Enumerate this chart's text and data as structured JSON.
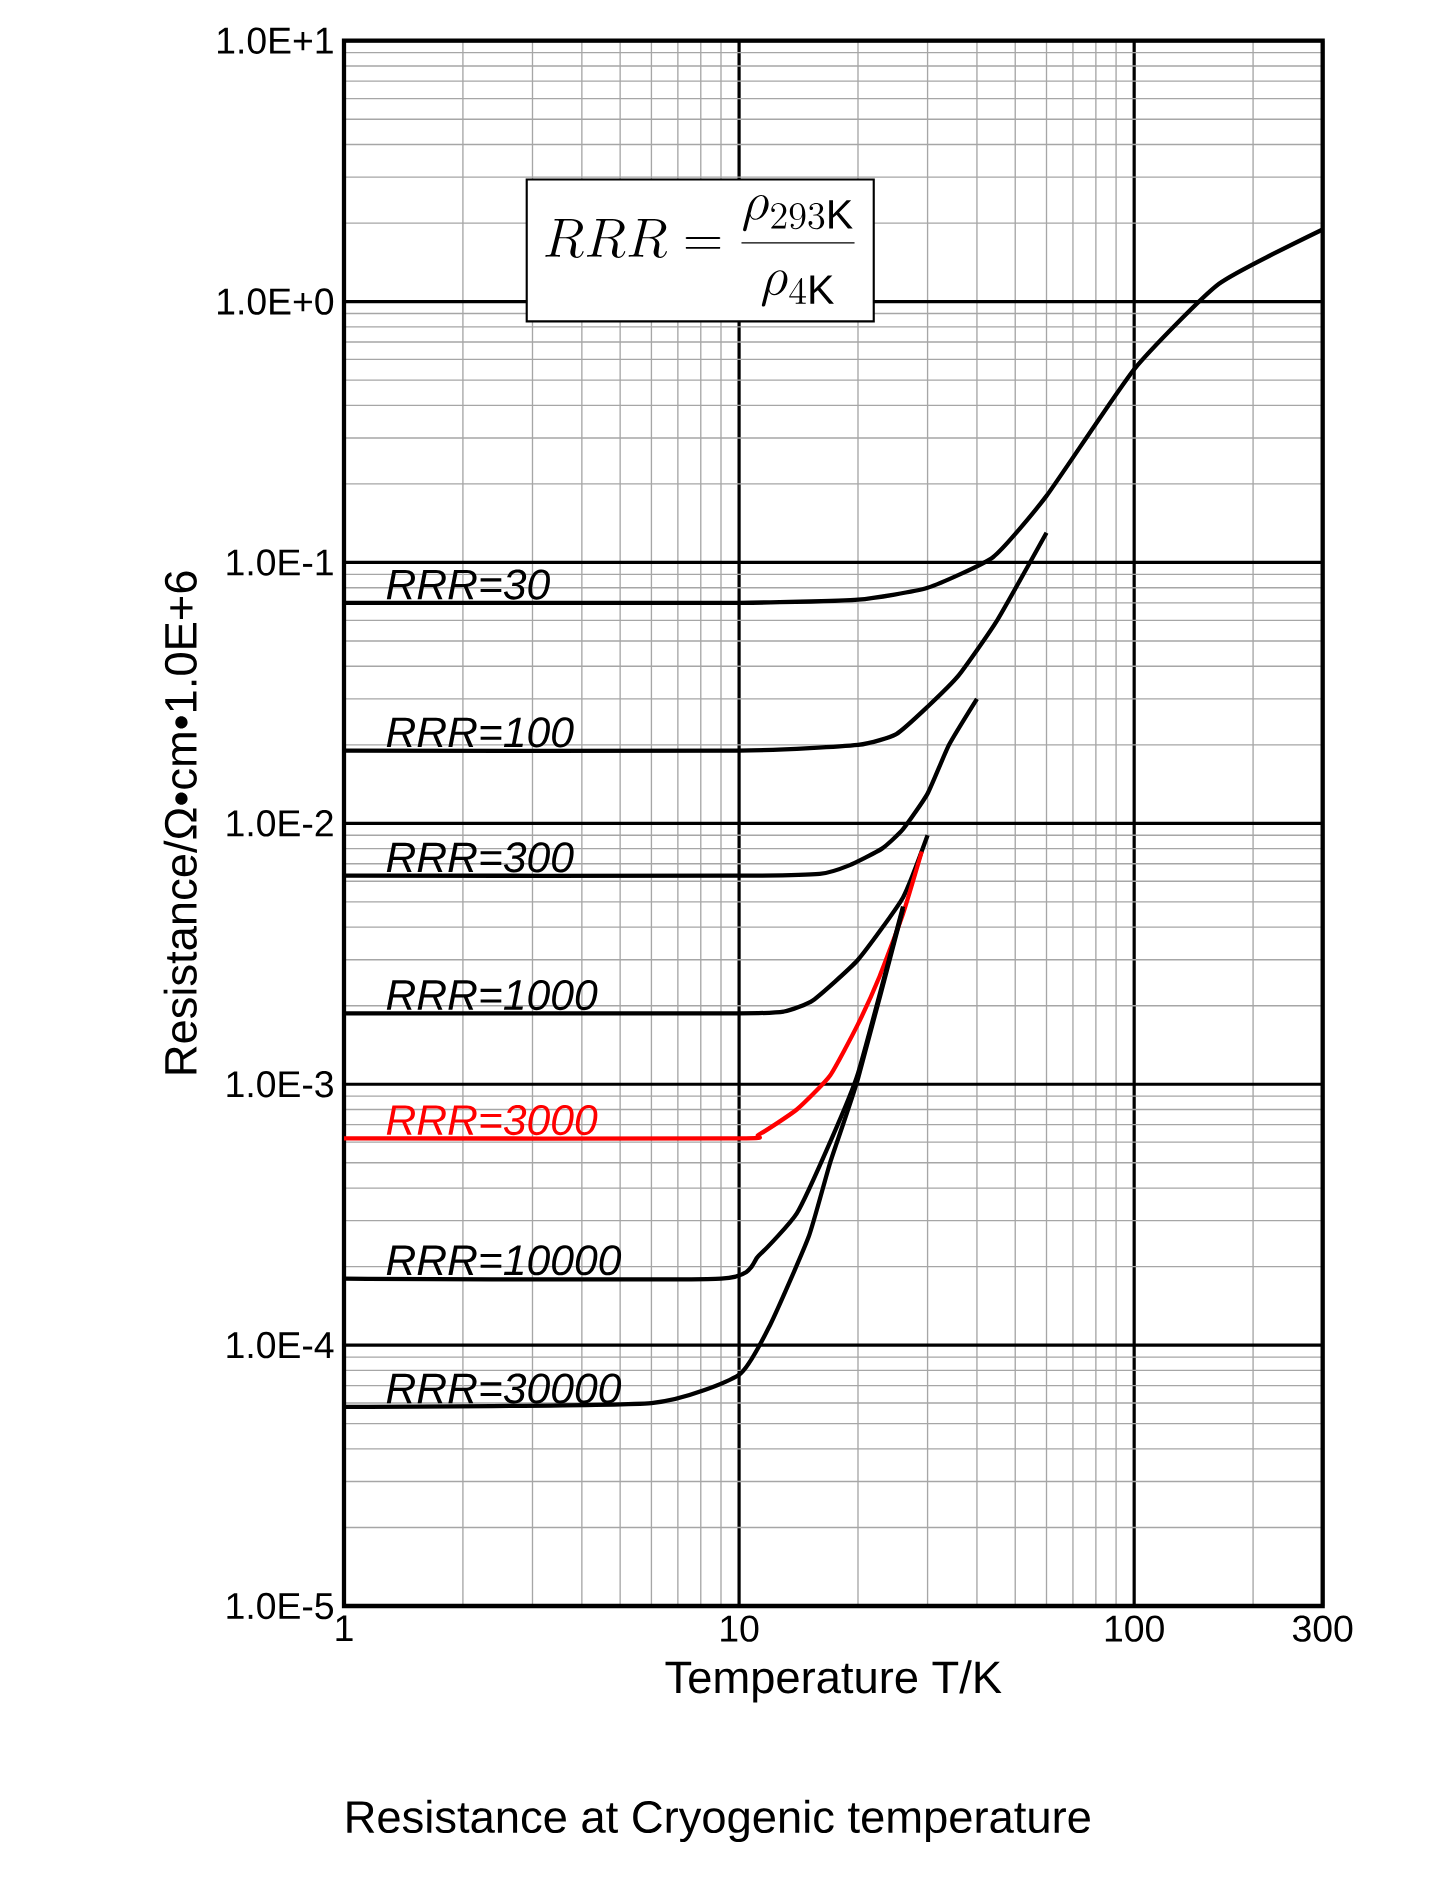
{
  "chart_data": {
    "type": "line",
    "title": "Resistance at Cryogenic temperature",
    "xlabel": "Temperature T/K",
    "ylabel": "Resistance/Ω•cm•1.0E+6",
    "log": "xy",
    "grid": true,
    "legend": false,
    "marker": "none",
    "line_style": "solid",
    "xlim": [
      1,
      300
    ],
    "ylim": [
      1e-05,
      10
    ],
    "xticks": [
      1,
      10,
      100,
      300
    ],
    "yticks": [
      {
        "value": 10,
        "label": "1.0E+1"
      },
      {
        "value": 1,
        "label": "1.0E+0"
      },
      {
        "value": 0.1,
        "label": "1.0E-1"
      },
      {
        "value": 0.01,
        "label": "1.0E-2"
      },
      {
        "value": 0.001,
        "label": "1.0E-3"
      },
      {
        "value": 0.0001,
        "label": "1.0E-4"
      },
      {
        "value": 1e-05,
        "label": "1.0E-5"
      }
    ],
    "annotations": [
      "RRR=\\frac{\\rho_{293\\mathrm{K}}}{\\rho_{4\\mathrm{K}}}"
    ],
    "series": [
      {
        "name": "RRR=30",
        "color": "#000000",
        "x": [
          1,
          5,
          10,
          20,
          30,
          44,
          60,
          100,
          164,
          300
        ],
        "values": [
          0.07,
          0.07,
          0.07,
          0.072,
          0.08,
          0.105,
          0.18,
          0.55,
          1.17,
          1.89
        ]
      },
      {
        "name": "RRR=100",
        "color": "#000000",
        "x": [
          1,
          10,
          20,
          25,
          30,
          36,
          45,
          60
        ],
        "values": [
          0.019,
          0.019,
          0.02,
          0.022,
          0.028,
          0.037,
          0.06,
          0.13
        ]
      },
      {
        "name": "RRR=300",
        "color": "#000000",
        "x": [
          1,
          10,
          16,
          19,
          23,
          26,
          30,
          34,
          40
        ],
        "values": [
          0.0063,
          0.0063,
          0.0064,
          0.0069,
          0.008,
          0.0095,
          0.013,
          0.02,
          0.03
        ]
      },
      {
        "name": "RRR=1000",
        "color": "#000000",
        "x": [
          1,
          10,
          13,
          15.4,
          20,
          26,
          30
        ],
        "values": [
          0.00187,
          0.00187,
          0.0019,
          0.0021,
          0.003,
          0.0052,
          0.009
        ]
      },
      {
        "name": "RRR=3000",
        "color": "#ff0000",
        "x": [
          1,
          10,
          11.2,
          14,
          17,
          20,
          22.7,
          26,
          29
        ],
        "values": [
          0.00062,
          0.00062,
          0.00064,
          0.0008,
          0.00108,
          0.0017,
          0.0026,
          0.0045,
          0.0078
        ]
      },
      {
        "name": "RRR=10000",
        "color": "#000000",
        "x": [
          1,
          9,
          11.2,
          14,
          17,
          20,
          26
        ],
        "values": [
          0.00018,
          0.00018,
          0.00022,
          0.00032,
          0.0006,
          0.0011,
          0.0048
        ]
      },
      {
        "name": "RRR=30000",
        "color": "#000000",
        "x": [
          1,
          6,
          10,
          12,
          15,
          17,
          20,
          26
        ],
        "values": [
          5.8e-05,
          6e-05,
          7.7e-05,
          0.00012,
          0.00026,
          0.0005,
          0.00105,
          0.0047
        ]
      }
    ]
  }
}
